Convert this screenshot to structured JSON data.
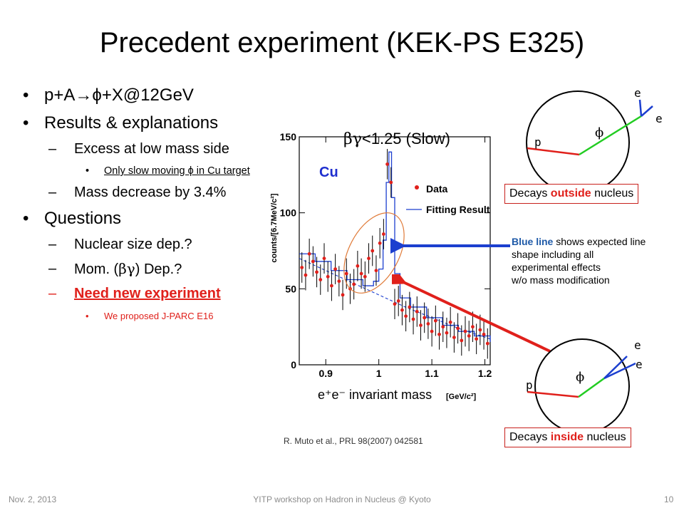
{
  "slide": {
    "title": "Precedent experiment (KEK-PS E325)",
    "bullets": {
      "b1": {
        "pre": "p+A",
        "arrow": "→",
        "post": "ϕ+X@12GeV"
      },
      "b2": "Results & explanations",
      "b2_sub1": "Excess at low mass side",
      "b2_sub1_sub": "Only slow moving ϕ in Cu target",
      "b2_sub2": "Mass decrease by 3.4%",
      "b3": "Questions",
      "b3_sub1": "Nuclear size dep.?",
      "b3_sub2_pre": "Mom. (",
      "b3_sub2_sym": "βγ",
      "b3_sub2_post": ") Dep.?",
      "b3_sub3": "Need new experiment",
      "b3_sub3_sub": "We proposed J-PARC E16"
    },
    "dash": "–",
    "plot_overlay": {
      "bg_label_sym": "βγ",
      "bg_label": "<1.25 (Slow)"
    },
    "decay_outside": {
      "pre": "Decays ",
      "word": "outside",
      "post": " nucleus"
    },
    "decay_inside": {
      "pre": "Decays ",
      "word": "inside",
      "post": " nucleus"
    },
    "blue_note": {
      "strong": "Blue line",
      "rest1": " shows expected line",
      "line2": "shape including all",
      "line3": "experimental effects",
      "line4": "w/o  mass modification"
    },
    "diagram_labels": {
      "e": "e",
      "phi": "ϕ",
      "p": "p"
    },
    "reference": "R. Muto et al., PRL 98(2007) 042581",
    "footer": {
      "date": "Nov. 2, 2013",
      "center": "YITP workshop on  Hadron in Nucleus @ Kyoto",
      "page": "10"
    },
    "colors": {
      "red": "#e0201b",
      "blue": "#1f5aa8",
      "arrow_blue": "#1c3fcf",
      "green": "#22cc22",
      "orange": "#e07b39"
    }
  },
  "chart_data": {
    "type": "scatter",
    "target_label": "Cu",
    "ylabel": "counts/[6.7MeV/c²]",
    "xlabel": "e⁺e⁻ invariant mass",
    "xunit": "[GeV/c²]",
    "xlim": [
      0.85,
      1.21
    ],
    "ylim": [
      0,
      150
    ],
    "x_ticks": [
      "0.9",
      "1",
      "1.1",
      "1.2"
    ],
    "y_ticks": [
      "0",
      "50",
      "100",
      "150"
    ],
    "legend": [
      "Data",
      "Fitting Result"
    ],
    "data_points": [
      {
        "x": 0.855,
        "y": 64
      },
      {
        "x": 0.862,
        "y": 59
      },
      {
        "x": 0.869,
        "y": 73
      },
      {
        "x": 0.876,
        "y": 68
      },
      {
        "x": 0.883,
        "y": 61
      },
      {
        "x": 0.89,
        "y": 56
      },
      {
        "x": 0.897,
        "y": 70
      },
      {
        "x": 0.904,
        "y": 58
      },
      {
        "x": 0.911,
        "y": 52
      },
      {
        "x": 0.918,
        "y": 63
      },
      {
        "x": 0.925,
        "y": 55
      },
      {
        "x": 0.932,
        "y": 46
      },
      {
        "x": 0.939,
        "y": 60
      },
      {
        "x": 0.946,
        "y": 50
      },
      {
        "x": 0.953,
        "y": 53
      },
      {
        "x": 0.96,
        "y": 65
      },
      {
        "x": 0.967,
        "y": 60
      },
      {
        "x": 0.974,
        "y": 58
      },
      {
        "x": 0.981,
        "y": 70
      },
      {
        "x": 0.988,
        "y": 75
      },
      {
        "x": 0.995,
        "y": 62
      },
      {
        "x": 1.002,
        "y": 80
      },
      {
        "x": 1.009,
        "y": 86
      },
      {
        "x": 1.016,
        "y": 132
      },
      {
        "x": 1.023,
        "y": 120
      },
      {
        "x": 1.03,
        "y": 40
      },
      {
        "x": 1.037,
        "y": 42
      },
      {
        "x": 1.044,
        "y": 36
      },
      {
        "x": 1.051,
        "y": 32
      },
      {
        "x": 1.058,
        "y": 38
      },
      {
        "x": 1.065,
        "y": 30
      },
      {
        "x": 1.072,
        "y": 35
      },
      {
        "x": 1.079,
        "y": 26
      },
      {
        "x": 1.086,
        "y": 31
      },
      {
        "x": 1.093,
        "y": 27
      },
      {
        "x": 1.1,
        "y": 22
      },
      {
        "x": 1.107,
        "y": 29
      },
      {
        "x": 1.114,
        "y": 20
      },
      {
        "x": 1.121,
        "y": 25
      },
      {
        "x": 1.128,
        "y": 21
      },
      {
        "x": 1.135,
        "y": 28
      },
      {
        "x": 1.142,
        "y": 18
      },
      {
        "x": 1.149,
        "y": 24
      },
      {
        "x": 1.156,
        "y": 16
      },
      {
        "x": 1.163,
        "y": 22
      },
      {
        "x": 1.17,
        "y": 19
      },
      {
        "x": 1.177,
        "y": 25
      },
      {
        "x": 1.184,
        "y": 17
      },
      {
        "x": 1.191,
        "y": 23
      },
      {
        "x": 1.198,
        "y": 20
      },
      {
        "x": 1.205,
        "y": 14
      }
    ],
    "error": 10,
    "fit_result": [
      {
        "x": 0.85,
        "y": 73
      },
      {
        "x": 0.88,
        "y": 68
      },
      {
        "x": 0.91,
        "y": 62
      },
      {
        "x": 0.94,
        "y": 56
      },
      {
        "x": 0.97,
        "y": 52
      },
      {
        "x": 0.99,
        "y": 55
      },
      {
        "x": 1.0,
        "y": 63
      },
      {
        "x": 1.008,
        "y": 82
      },
      {
        "x": 1.014,
        "y": 120
      },
      {
        "x": 1.019,
        "y": 140
      },
      {
        "x": 1.024,
        "y": 110
      },
      {
        "x": 1.03,
        "y": 60
      },
      {
        "x": 1.04,
        "y": 44
      },
      {
        "x": 1.06,
        "y": 38
      },
      {
        "x": 1.09,
        "y": 31
      },
      {
        "x": 1.12,
        "y": 26
      },
      {
        "x": 1.15,
        "y": 22
      },
      {
        "x": 1.18,
        "y": 19
      },
      {
        "x": 1.21,
        "y": 15
      }
    ],
    "background": [
      {
        "x": 0.85,
        "y": 70
      },
      {
        "x": 0.9,
        "y": 62
      },
      {
        "x": 0.95,
        "y": 54
      },
      {
        "x": 1.0,
        "y": 46
      },
      {
        "x": 1.05,
        "y": 38
      },
      {
        "x": 1.1,
        "y": 31
      },
      {
        "x": 1.15,
        "y": 24
      },
      {
        "x": 1.21,
        "y": 17
      }
    ]
  }
}
